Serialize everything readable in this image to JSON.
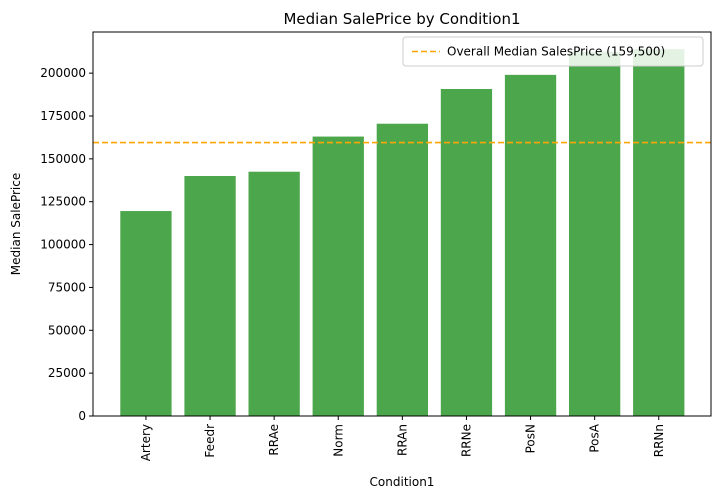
{
  "chart_data": {
    "type": "bar",
    "title": "Median SalePrice by Condition1",
    "xlabel": "Condition1",
    "ylabel": "Median SalePrice",
    "categories": [
      "Artery",
      "Feedr",
      "RRAe",
      "Norm",
      "RRAn",
      "RRNe",
      "PosN",
      "PosA",
      "RRNn"
    ],
    "values": [
      119550,
      140000,
      142500,
      163000,
      170500,
      190750,
      199000,
      212500,
      214000
    ],
    "ylim": [
      0,
      224000
    ],
    "yticks": [
      0,
      25000,
      50000,
      75000,
      100000,
      125000,
      150000,
      175000,
      200000
    ],
    "bar_color": "#4ca64c",
    "reference_line": {
      "value": 159500,
      "label": "Overall Median SalesPrice (159,500)",
      "color": "#ffa500",
      "style": "dashed"
    },
    "legend_position": "top-right",
    "grid": false
  }
}
